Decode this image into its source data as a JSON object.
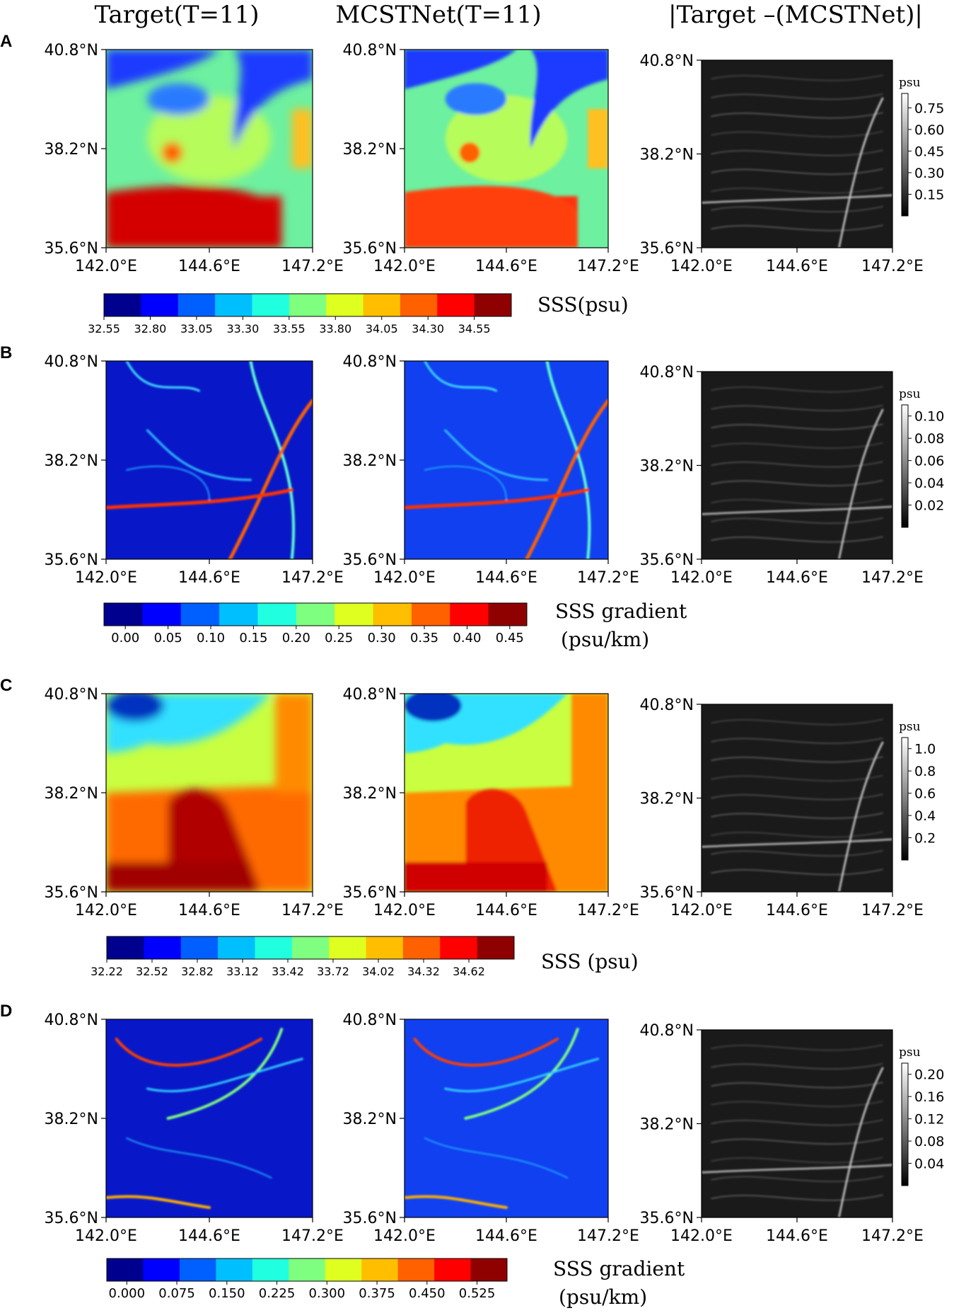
{
  "column_titles": [
    "Target(T=11)",
    "MCSTNet(T=11)",
    "|Target –(MCSTNet)|"
  ],
  "lat_ticks": [
    "40.8°N",
    "38.2°N",
    "35.6°N"
  ],
  "lon_ticks": [
    "142.0°E",
    "144.6°E",
    "147.2°E"
  ],
  "error_unit": "psu",
  "chart_data": [
    {
      "panel": "A",
      "type": "heatmap",
      "variable_label": "SSS(psu)",
      "colorbar": {
        "colormap": "jet",
        "ticks": [
          32.55,
          32.8,
          33.05,
          33.3,
          33.55,
          33.8,
          34.05,
          34.3,
          34.55
        ],
        "tick_labels": [
          "32.55",
          "32.80",
          "33.05",
          "33.30",
          "33.55",
          "33.80",
          "34.05",
          "34.30",
          "34.55"
        ],
        "range": [
          32.55,
          34.75
        ]
      },
      "error_colorbar": {
        "colormap": "gray",
        "ticks": [
          0.15,
          0.3,
          0.45,
          0.6,
          0.75
        ],
        "tick_labels": [
          "0.15",
          "0.30",
          "0.45",
          "0.60",
          "0.75"
        ],
        "range": [
          0,
          0.85
        ]
      },
      "xlim": [
        142.0,
        147.2
      ],
      "ylim": [
        35.6,
        40.8
      ]
    },
    {
      "panel": "B",
      "type": "heatmap",
      "variable_label": "SSS gradient",
      "variable_unit": "(psu/km)",
      "colorbar": {
        "colormap": "jet",
        "ticks": [
          0.0,
          0.05,
          0.1,
          0.15,
          0.2,
          0.25,
          0.3,
          0.35,
          0.4,
          0.45
        ],
        "tick_labels": [
          "0.00",
          "0.05",
          "0.10",
          "0.15",
          "0.20",
          "0.25",
          "0.30",
          "0.35",
          "0.40",
          "0.45"
        ],
        "range": [
          -0.025,
          0.47
        ]
      },
      "error_colorbar": {
        "colormap": "gray",
        "ticks": [
          0.02,
          0.04,
          0.06,
          0.08,
          0.1
        ],
        "tick_labels": [
          "0.02",
          "0.04",
          "0.06",
          "0.08",
          "0.10"
        ],
        "range": [
          0,
          0.11
        ]
      },
      "xlim": [
        142.0,
        147.2
      ],
      "ylim": [
        35.6,
        40.8
      ]
    },
    {
      "panel": "C",
      "type": "heatmap",
      "variable_label": "SSS (psu)",
      "colorbar": {
        "colormap": "jet",
        "ticks": [
          32.22,
          32.52,
          32.82,
          33.12,
          33.42,
          33.72,
          34.02,
          34.32,
          34.62
        ],
        "tick_labels": [
          "32.22",
          "32.52",
          "32.82",
          "33.12",
          "33.42",
          "33.72",
          "34.02",
          "34.32",
          "34.62"
        ],
        "range": [
          32.22,
          34.92
        ]
      },
      "error_colorbar": {
        "colormap": "gray",
        "ticks": [
          0.2,
          0.4,
          0.6,
          0.8,
          1.0
        ],
        "tick_labels": [
          "0.2",
          "0.4",
          "0.6",
          "0.8",
          "1.0"
        ],
        "range": [
          0,
          1.1
        ]
      },
      "xlim": [
        142.0,
        147.2
      ],
      "ylim": [
        35.6,
        40.8
      ]
    },
    {
      "panel": "D",
      "type": "heatmap",
      "variable_label": "SSS gradient",
      "variable_unit": "(psu/km)",
      "colorbar": {
        "colormap": "jet",
        "ticks": [
          0.0,
          0.075,
          0.15,
          0.225,
          0.3,
          0.375,
          0.45,
          0.525
        ],
        "tick_labels": [
          "0.000",
          "0.075",
          "0.150",
          "0.225",
          "0.300",
          "0.375",
          "0.450",
          "0.525"
        ],
        "range": [
          -0.03,
          0.57
        ]
      },
      "error_colorbar": {
        "colormap": "gray",
        "ticks": [
          0.04,
          0.08,
          0.12,
          0.16,
          0.2
        ],
        "tick_labels": [
          "0.04",
          "0.08",
          "0.12",
          "0.16",
          "0.20"
        ],
        "range": [
          0,
          0.22
        ]
      },
      "xlim": [
        142.0,
        147.2
      ],
      "ylim": [
        35.6,
        40.8
      ]
    }
  ]
}
